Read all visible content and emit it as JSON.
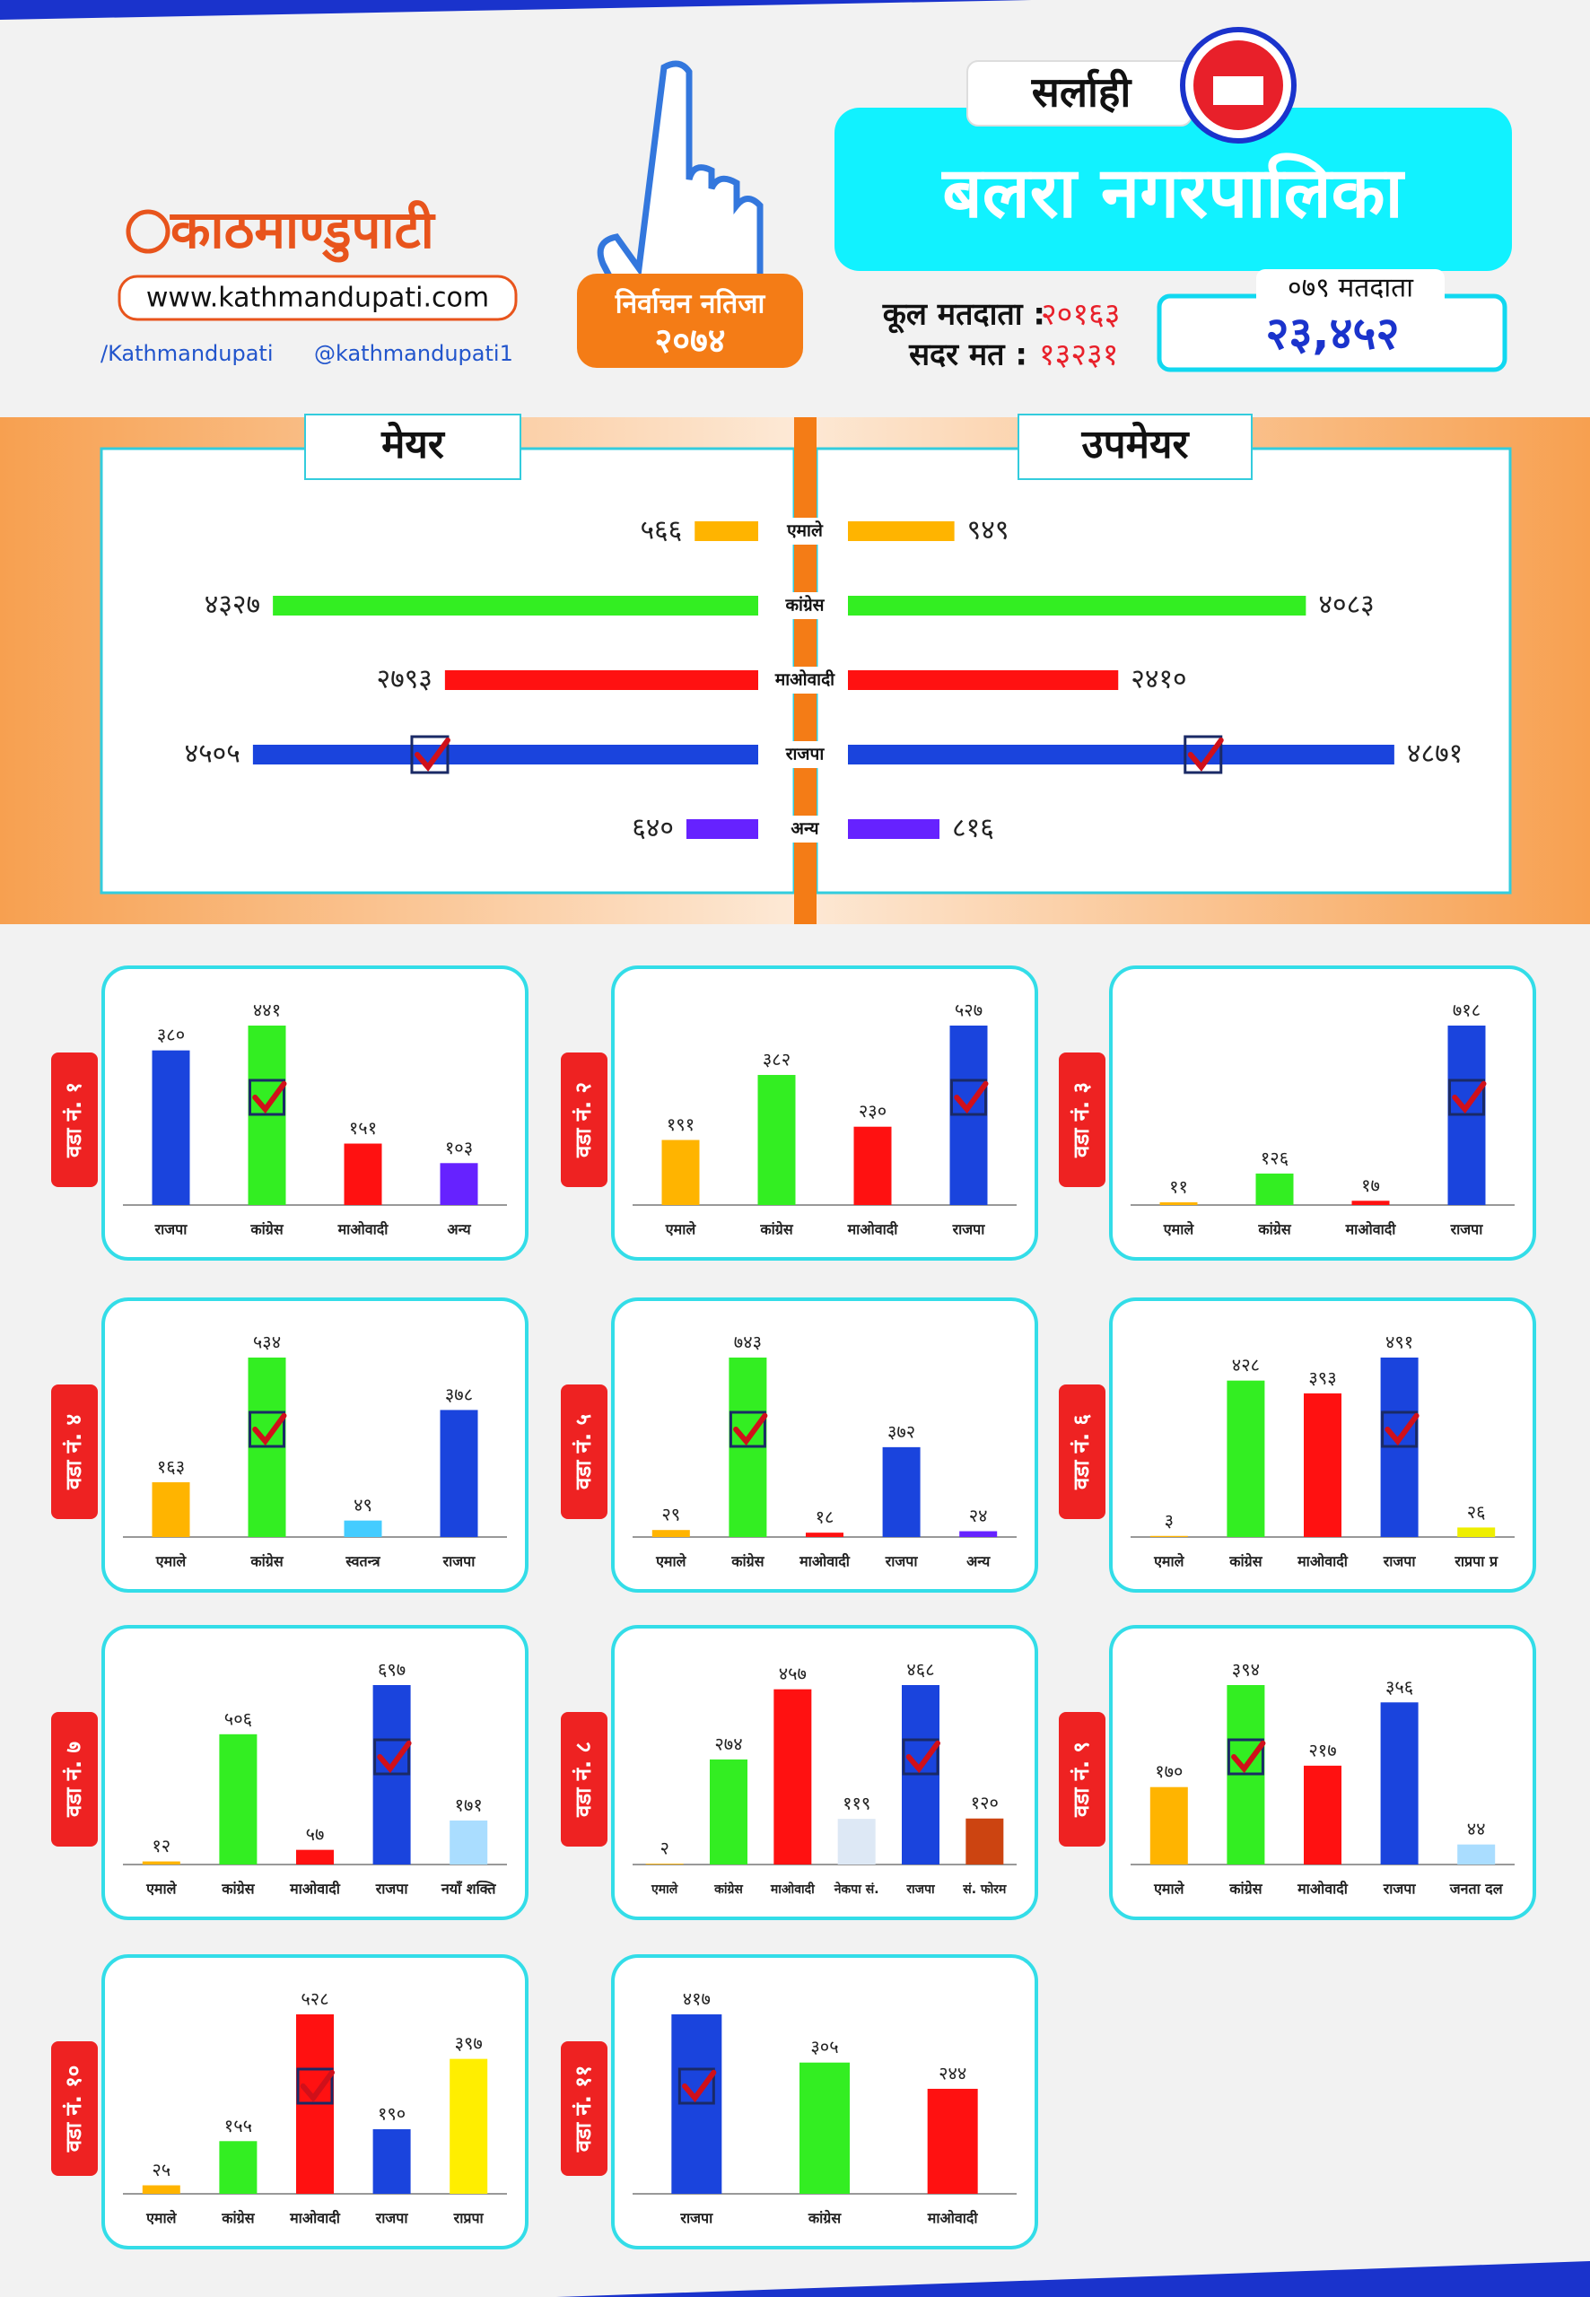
{
  "header": {
    "district": "सर्लाही",
    "municipality": "बलरा नगरपालिका",
    "badge_title": "निर्वाचन नतिजा",
    "badge_year": "२०७४",
    "logo": "काठमाण्डुपाटी",
    "website": "www.kathmandupati.com",
    "facebook": "/Kathmandupati",
    "twitter": "@kathmandupati1",
    "total_voters_label": "कूल मतदाता :",
    "total_voters": "२०१६३",
    "valid_votes_label": "सदर मत :",
    "valid_votes": "१३२३१",
    "voters_079_label": "०७९ मतदाता",
    "voters_079": "२३,४५२"
  },
  "chart_data": [
    {
      "type": "butterfly",
      "categories": [
        "एमाले",
        "कांग्रेस",
        "माओवादी",
        "राजपा",
        "अन्य"
      ],
      "colors": [
        "#ffb400",
        "#33ee22",
        "#ff1111",
        "#1a44dd",
        "#6622ff"
      ],
      "series": [
        {
          "name": "मेयर",
          "values": [
            566,
            4327,
            2793,
            4505,
            640
          ],
          "value_labels": [
            "५६६",
            "४३२७",
            "२७९३",
            "४५०५",
            "६४०"
          ],
          "check": 3
        },
        {
          "name": "उपमेयर",
          "values": [
            949,
            4083,
            2410,
            4871,
            816
          ],
          "value_labels": [
            "९४९",
            "४०८३",
            "२४१०",
            "४८७१",
            "८१६"
          ],
          "check": 3
        }
      ]
    },
    {
      "type": "bar",
      "title": "वडा नं. १",
      "categories": [
        "राजपा",
        "कांग्रेस",
        "माओवादी",
        "अन्य"
      ],
      "values": [
        380,
        441,
        151,
        103
      ],
      "value_labels": [
        "३८०",
        "४४१",
        "१५१",
        "१०३"
      ],
      "colors": [
        "#1a44dd",
        "#33ee22",
        "#ff1111",
        "#6622ff"
      ],
      "check": 1
    },
    {
      "type": "bar",
      "title": "वडा नं. २",
      "categories": [
        "एमाले",
        "कांग्रेस",
        "माओवादी",
        "राजपा"
      ],
      "values": [
        191,
        382,
        230,
        527
      ],
      "value_labels": [
        "१९१",
        "३८२",
        "२३०",
        "५२७"
      ],
      "colors": [
        "#ffb400",
        "#33ee22",
        "#ff1111",
        "#1a44dd"
      ],
      "check": 3
    },
    {
      "type": "bar",
      "title": "वडा नं. ३",
      "categories": [
        "एमाले",
        "कांग्रेस",
        "माओवादी",
        "राजपा"
      ],
      "values": [
        11,
        126,
        17,
        718
      ],
      "value_labels": [
        "११",
        "१२६",
        "१७",
        "७१८"
      ],
      "colors": [
        "#ffb400",
        "#33ee22",
        "#ff1111",
        "#1a44dd"
      ],
      "check": 3
    },
    {
      "type": "bar",
      "title": "वडा नं. ४",
      "categories": [
        "एमाले",
        "कांग्रेस",
        "स्वतन्त्र",
        "राजपा"
      ],
      "values": [
        163,
        534,
        49,
        378
      ],
      "value_labels": [
        "१६३",
        "५३४",
        "४९",
        "३७८"
      ],
      "colors": [
        "#ffb400",
        "#33ee22",
        "#44ccff",
        "#1a44dd"
      ],
      "check": 1
    },
    {
      "type": "bar",
      "title": "वडा नं. ५",
      "categories": [
        "एमाले",
        "कांग्रेस",
        "माओवादी",
        "राजपा",
        "अन्य"
      ],
      "values": [
        29,
        743,
        18,
        372,
        24
      ],
      "value_labels": [
        "२९",
        "७४३",
        "१८",
        "३७२",
        "२४"
      ],
      "colors": [
        "#ffb400",
        "#33ee22",
        "#ff1111",
        "#1a44dd",
        "#6622ff"
      ],
      "check": 1
    },
    {
      "type": "bar",
      "title": "वडा नं. ६",
      "categories": [
        "एमाले",
        "कांग्रेस",
        "माओवादी",
        "राजपा",
        "राप्रपा प्र"
      ],
      "values": [
        3,
        428,
        393,
        491,
        26
      ],
      "value_labels": [
        "३",
        "४२८",
        "३९३",
        "४९१",
        "२६"
      ],
      "colors": [
        "#ffb400",
        "#33ee22",
        "#ff1111",
        "#1a44dd",
        "#eeee00"
      ],
      "check": 3
    },
    {
      "type": "bar",
      "title": "वडा नं. ७",
      "categories": [
        "एमाले",
        "कांग्रेस",
        "माओवादी",
        "राजपा",
        "नयाँ शक्ति"
      ],
      "values": [
        12,
        506,
        57,
        697,
        171
      ],
      "value_labels": [
        "१२",
        "५०६",
        "५७",
        "६९७",
        "१७१"
      ],
      "colors": [
        "#ffb400",
        "#33ee22",
        "#ff1111",
        "#1a44dd",
        "#aaddff"
      ],
      "check": 3
    },
    {
      "type": "bar",
      "title": "वडा नं. ८",
      "categories": [
        "एमाले",
        "कांग्रेस",
        "माओवादी",
        "नेकपा सं.",
        "राजपा",
        "सं. फोरम"
      ],
      "values": [
        2,
        274,
        457,
        119,
        468,
        120
      ],
      "value_labels": [
        "२",
        "२७४",
        "४५७",
        "११९",
        "४६८",
        "१२०"
      ],
      "colors": [
        "#ffb400",
        "#33ee22",
        "#ff1111",
        "#dde8f5",
        "#1a44dd",
        "#cc4411"
      ],
      "check": 4
    },
    {
      "type": "bar",
      "title": "वडा नं. ९",
      "categories": [
        "एमाले",
        "कांग्रेस",
        "माओवादी",
        "राजपा",
        "जनता दल"
      ],
      "values": [
        170,
        394,
        217,
        356,
        44
      ],
      "value_labels": [
        "१७०",
        "३९४",
        "२१७",
        "३५६",
        "४४"
      ],
      "colors": [
        "#ffb400",
        "#33ee22",
        "#ff1111",
        "#1a44dd",
        "#aaddff"
      ],
      "check": 1
    },
    {
      "type": "bar",
      "title": "वडा नं. १०",
      "categories": [
        "एमाले",
        "कांग्रेस",
        "माओवादी",
        "राजपा",
        "राप्रपा"
      ],
      "values": [
        25,
        155,
        528,
        190,
        397
      ],
      "value_labels": [
        "२५",
        "१५५",
        "५२८",
        "१९०",
        "३९७"
      ],
      "colors": [
        "#ffb400",
        "#33ee22",
        "#ff1111",
        "#1a44dd",
        "#ffee00"
      ],
      "check": 2
    },
    {
      "type": "bar",
      "title": "वडा नं. ११",
      "categories": [
        "राजपा",
        "कांग्रेस",
        "माओवादी"
      ],
      "values": [
        417,
        305,
        244
      ],
      "value_labels": [
        "४१७",
        "३०५",
        "२४४"
      ],
      "colors": [
        "#1a44dd",
        "#33ee22",
        "#ff1111"
      ],
      "check": 0
    }
  ]
}
